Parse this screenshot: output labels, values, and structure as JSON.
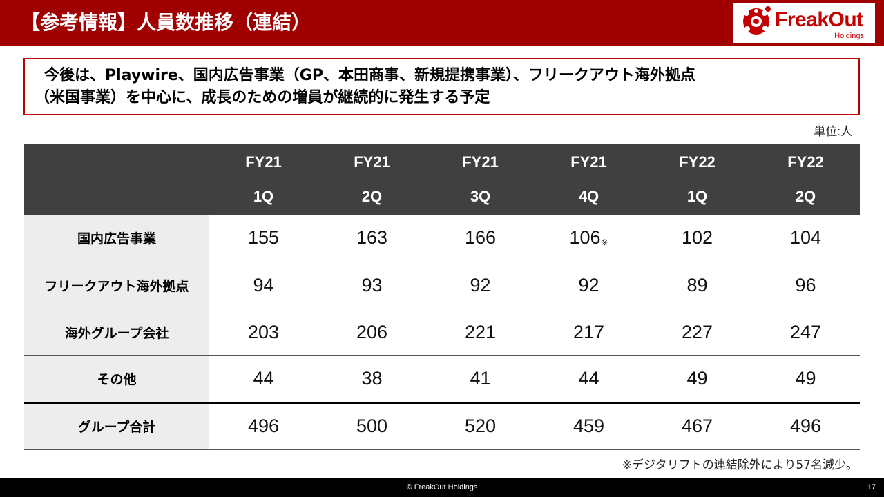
{
  "header": {
    "title": "【参考情報】人員数推移（連結）",
    "logo_text": "FreakOut",
    "logo_subtext": "Holdings"
  },
  "message": {
    "line1": "今後は、Playwire、国内広告事業（GP、本田商事、新規提携事業）、フリークアウト海外拠点",
    "line2": "（米国事業）を中心に、成長のための増員が継続的に発生する予定"
  },
  "unit_label": "単位:人",
  "table": {
    "columns": [
      {
        "year": "FY21",
        "quarter": "1Q"
      },
      {
        "year": "FY21",
        "quarter": "2Q"
      },
      {
        "year": "FY21",
        "quarter": "3Q"
      },
      {
        "year": "FY21",
        "quarter": "4Q"
      },
      {
        "year": "FY22",
        "quarter": "1Q"
      },
      {
        "year": "FY22",
        "quarter": "2Q"
      }
    ],
    "rows": [
      {
        "label": "国内広告事業",
        "values": [
          "155",
          "163",
          "166",
          "106",
          "102",
          "104"
        ],
        "note_mark": "※"
      },
      {
        "label": "フリークアウト海外拠点",
        "values": [
          "94",
          "93",
          "92",
          "92",
          "89",
          "96"
        ]
      },
      {
        "label": "海外グループ会社",
        "values": [
          "203",
          "206",
          "221",
          "217",
          "227",
          "247"
        ]
      },
      {
        "label": "その他",
        "values": [
          "44",
          "38",
          "41",
          "44",
          "49",
          "49"
        ]
      },
      {
        "label": "グループ合計",
        "values": [
          "496",
          "500",
          "520",
          "459",
          "467",
          "496"
        ]
      }
    ]
  },
  "footnote": "※デジタリフトの連結除外により57名減少。",
  "footer": {
    "copyright": "© FreakOut Holdings",
    "page_number": "17"
  },
  "colors": {
    "header_red": "#a00000",
    "logo_red": "#c40000",
    "table_header": "#404040",
    "row_label_bg": "#ededed"
  }
}
